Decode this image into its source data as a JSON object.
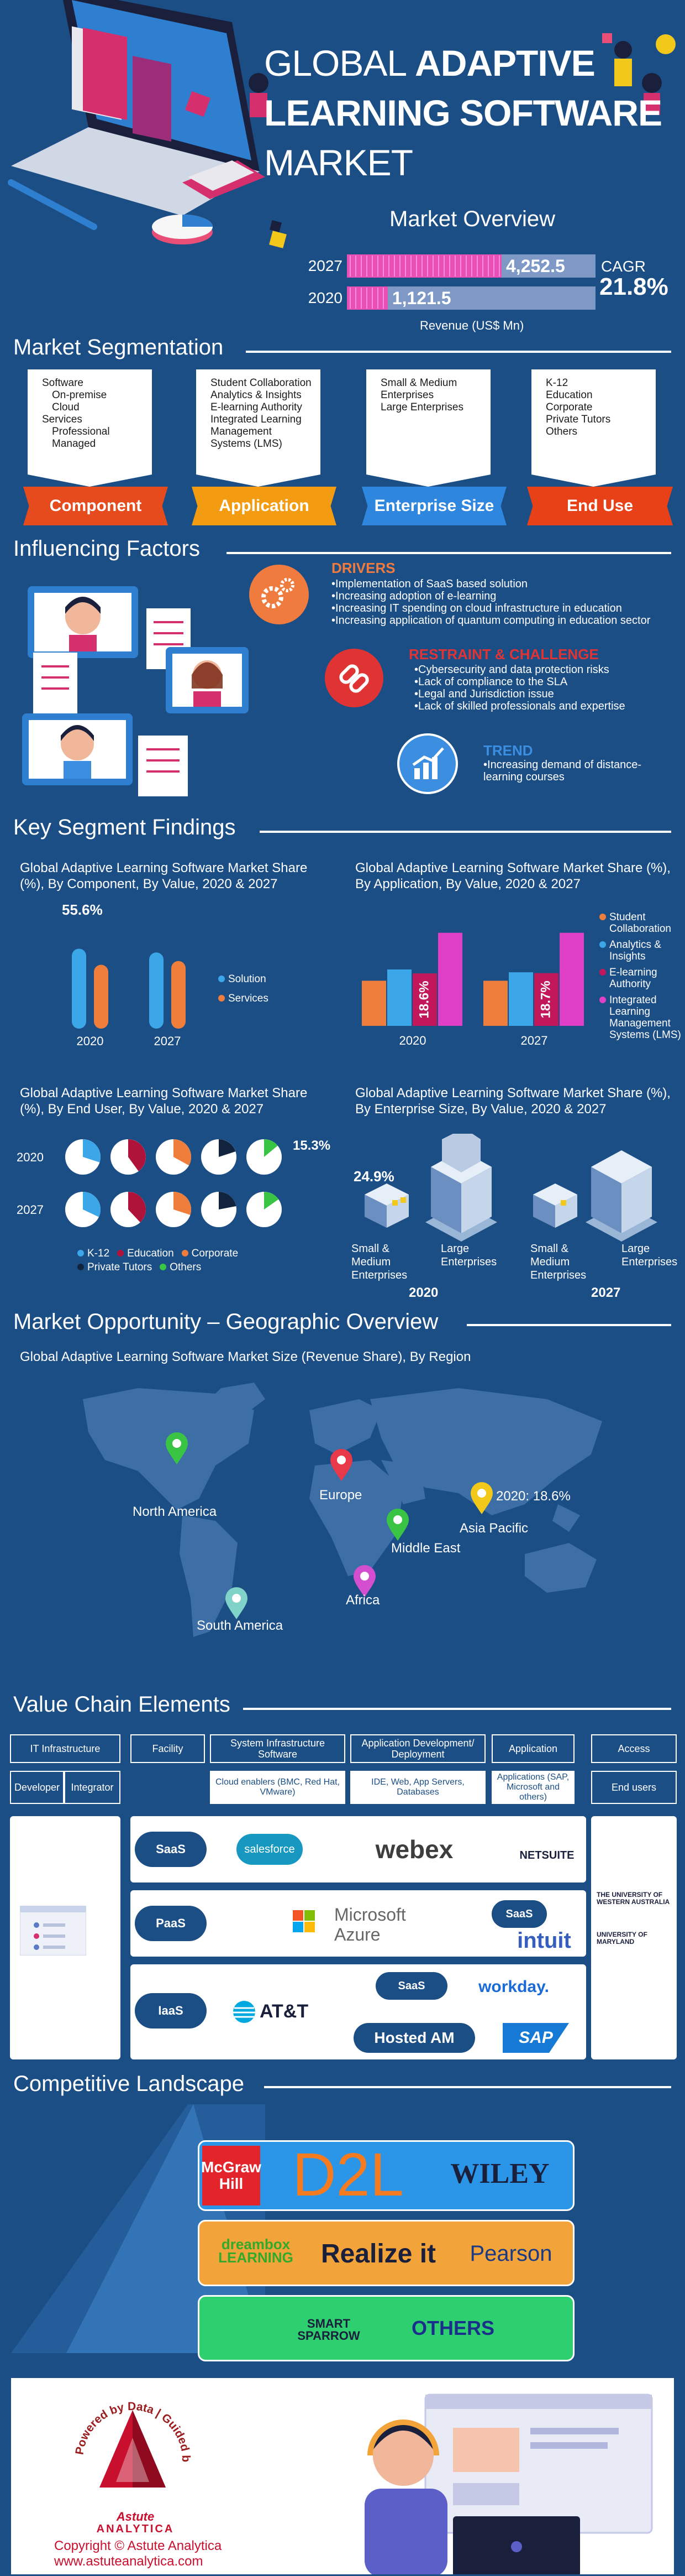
{
  "header": {
    "title_line1_light": "GLOBAL",
    "title_line1_bold": "ADAPTIVE",
    "title_line2": "LEARNING SOFTWARE",
    "title_line3": "MARKET"
  },
  "overview": {
    "title": "Market Overview",
    "unit": "Revenue (US$ Mn)",
    "cagr_label": "CAGR",
    "cagr_value": "21.8%",
    "bars": [
      {
        "year": "2027",
        "value": 4252.5,
        "label": "4,252.5"
      },
      {
        "year": "2020",
        "value": 1121.5,
        "label": "1,121.5"
      }
    ]
  },
  "segmentation": {
    "title": "Market Segmentation",
    "segments": [
      {
        "name": "Component",
        "color": "#e64b1e",
        "items": [
          "Software",
          "On-premise",
          "Cloud",
          "Services",
          "Professional",
          "Managed"
        ]
      },
      {
        "name": "Application",
        "color": "#f39c12",
        "items": [
          "Student Collaboration",
          "Analytics & Insights",
          "E-learning Authority",
          "Integrated Learning Management Systems (LMS)"
        ]
      },
      {
        "name": "Enterprise Size",
        "color": "#2e86de",
        "items": [
          "Small & Medium Enterprises",
          "Large Enterprises"
        ]
      },
      {
        "name": "End Use",
        "color": "#e84118",
        "items": [
          "K-12",
          "Education",
          "Corporate",
          "Private Tutors",
          "Others"
        ]
      }
    ]
  },
  "factors": {
    "title": "Influencing Factors",
    "drivers": {
      "title": "DRIVERS",
      "items": [
        "Implementation of SaaS based solution",
        "Increasing adoption of e-learning",
        "Increasing IT spending on cloud infrastructure in education",
        "Increasing application of quantum computing in education sector"
      ]
    },
    "restraints": {
      "title": "RESTRAINT & CHALLENGE",
      "items": [
        "Cybersecurity and data protection risks",
        "Lack of compliance to the SLA",
        "Legal and Jurisdiction issue",
        "Lack of skilled professionals and expertise"
      ]
    },
    "trend": {
      "title": "TREND",
      "items": [
        "Increasing demand of distance-learning courses"
      ]
    }
  },
  "findings": {
    "title": "Key Segment Findings",
    "component": {
      "title": "Global Adaptive Learning Software Market Share (%), By Component, By Value, 2020 & 2027",
      "highlight": "55.6%"
    },
    "application": {
      "title": "Global Adaptive Learning Software Market Share (%), By Application, By Value, 2020 & 2027"
    },
    "end_user": {
      "title": "Global Adaptive Learning Software Market Share (%), By End User, By Value, 2020 & 2027",
      "highlight": "15.3%"
    },
    "enterprise": {
      "title": "Global Adaptive Learning Software Market Share (%), By Enterprise Size, By Value, 2020 & 2027",
      "highlight": "24.9%",
      "labels": [
        "Small & Medium Enterprises",
        "Large Enterprises"
      ],
      "years": [
        "2020",
        "2027"
      ]
    }
  },
  "chart_data": [
    {
      "type": "bar",
      "title": "Global Adaptive Learning Software Market Share (%), By Component, By Value, 2020 & 2027",
      "categories": [
        "2020",
        "2027"
      ],
      "series": [
        {
          "name": "Solution",
          "color": "#3ba7e8",
          "values": [
            55.6,
            53
          ]
        },
        {
          "name": "Services",
          "color": "#ef7d3c",
          "values": [
            44.4,
            47
          ]
        }
      ],
      "data_labels": [
        "55.6%"
      ]
    },
    {
      "type": "bar",
      "title": "Global Adaptive Learning Software Market Share (%), By Application, By Value, 2020 & 2027",
      "categories": [
        "2020",
        "2027"
      ],
      "series": [
        {
          "name": "Student Collaboration",
          "color": "#ef7d3c",
          "values": [
            16,
            16
          ]
        },
        {
          "name": "Analytics & Insights",
          "color": "#3ba7e8",
          "values": [
            20,
            19
          ]
        },
        {
          "name": "E-learning Authority",
          "color": "#c2185b",
          "values": [
            18.6,
            18.7
          ]
        },
        {
          "name": "Integrated Learning Management Systems (LMS)",
          "color": "#e040c8",
          "values": [
            33,
            33
          ]
        }
      ],
      "data_labels": [
        "18.6%",
        "18.7%"
      ]
    },
    {
      "type": "pie",
      "title": "Global Adaptive Learning Software Market Share (%), By End User, By Value, 2020 & 2027",
      "categories": [
        "K-12",
        "Education",
        "Corporate",
        "Private Tutors",
        "Others"
      ],
      "series": [
        {
          "name": "2020",
          "values": [
            30,
            40,
            33,
            20,
            14
          ]
        },
        {
          "name": "2027",
          "values": [
            32,
            38,
            30,
            22,
            15.3
          ]
        }
      ],
      "colors": [
        "#3ba7e8",
        "#b0133a",
        "#ef7d3c",
        "#12243d",
        "#3ac444"
      ],
      "data_labels": [
        "15.3%"
      ]
    },
    {
      "type": "bar",
      "title": "Global Adaptive Learning Software Market Share (%), By Enterprise Size, By Value, 2020 & 2027",
      "categories": [
        "2020",
        "2027"
      ],
      "series": [
        {
          "name": "Small & Medium Enterprises",
          "values": [
            24.9,
            26
          ]
        },
        {
          "name": "Large Enterprises",
          "values": [
            75.1,
            74
          ]
        }
      ],
      "data_labels": [
        "24.9%"
      ]
    }
  ],
  "geo": {
    "title": "Market Opportunity – Geographic Overview",
    "subtitle": "Global Adaptive Learning Software Market Size (Revenue Share), By Region",
    "regions": [
      {
        "name": "North America",
        "color": "#3ac444"
      },
      {
        "name": "Europe",
        "color": "#e8394b"
      },
      {
        "name": "Asia Pacific",
        "color": "#f2c81b",
        "note": "2020: 18.6%"
      },
      {
        "name": "Middle East",
        "color": "#3ac444"
      },
      {
        "name": "Africa",
        "color": "#d44fd0"
      },
      {
        "name": "South America",
        "color": "#7fd3c8"
      }
    ]
  },
  "value_chain": {
    "title": "Value Chain Elements",
    "heads": [
      "IT Infrastructure",
      "Facility",
      "System Infrastructure Software",
      "Application Development/ Deployment",
      "Application",
      "Access"
    ],
    "subs": [
      "Developer",
      "Integrator",
      "Cloud enablers (BMC, Red Hat, VMware)",
      "IDE, Web, App Servers, Databases",
      "Applications (SAP, Microsoft and others)",
      "End users"
    ],
    "clouds": [
      "SaaS",
      "PaaS",
      "IaaS",
      "SaaS",
      "SaaS"
    ],
    "logos": [
      "salesforce",
      "webex",
      "NETSUITE",
      "Microsoft",
      "Azure",
      "intuit",
      "AT&T",
      "workday.",
      "Hosted AM",
      "SAP",
      "THE UNIVERSITY OF WESTERN AUSTRALIA",
      "UNIVERSITY OF MARYLAND"
    ]
  },
  "competitive": {
    "title": "Competitive Landscape",
    "tier1": [
      "McGraw Hill",
      "D2L",
      "WILEY"
    ],
    "tier2": [
      "dreambox LEARNING",
      "Realize it",
      "Pearson"
    ],
    "tier3": [
      "SMART SPARROW",
      "OTHERS"
    ]
  },
  "footer": {
    "ring_text": "Powered by Data | Guided by Intelligence",
    "brand": "Astute",
    "brand2": "ANALYTICA",
    "copyright": "Copyright © Astute Analytica",
    "url": "www.astuteanalytica.com"
  }
}
